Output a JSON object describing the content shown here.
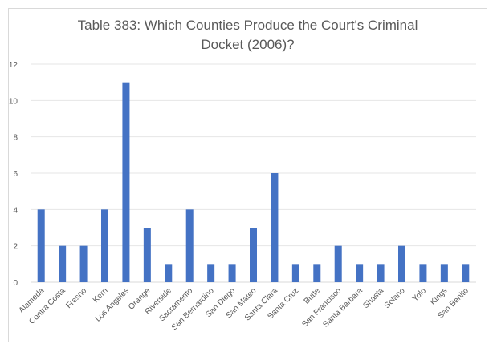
{
  "chart_data": {
    "type": "bar",
    "title": "Table 383: Which Counties Produce the Court's Criminal Docket (2006)?",
    "xlabel": "",
    "ylabel": "",
    "ylim": [
      0,
      12
    ],
    "yticks": [
      0,
      2,
      4,
      6,
      8,
      10,
      12
    ],
    "grid": true,
    "legend": "none",
    "bar_color": "#4472c4",
    "categories": [
      "Alameda",
      "Contra Costa",
      "Fresno",
      "Kern",
      "Los Angeles",
      "Orange",
      "Riverside",
      "Sacramento",
      "San Bernardino",
      "San Diego",
      "San Mateo",
      "Santa Clara",
      "Santa Cruz",
      "Butte",
      "San Francisco",
      "Santa Barbara",
      "Shasta",
      "Solano",
      "Yolo",
      "Kings",
      "San Benito"
    ],
    "values": [
      4,
      2,
      2,
      4,
      11,
      3,
      1,
      4,
      1,
      1,
      3,
      6,
      1,
      1,
      2,
      1,
      1,
      2,
      1,
      1,
      1
    ]
  }
}
